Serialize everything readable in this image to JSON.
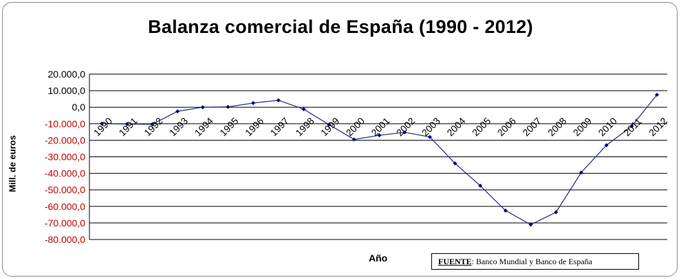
{
  "title": "Balanza comercial de España (1990 - 2012)",
  "source": {
    "label": "FUENTE",
    "text": ": Banco Mundial y Banco de España"
  },
  "chart_data": {
    "type": "line",
    "title": "Balanza comercial de España (1990 - 2012)",
    "xlabel": "Año",
    "ylabel": "Mill. de euros",
    "categories": [
      "1990",
      "1991",
      "1992",
      "1993",
      "1994",
      "1995",
      "1996",
      "1997",
      "1998",
      "1999",
      "2000",
      "2001",
      "2002",
      "2003",
      "2004",
      "2005",
      "2006",
      "2007",
      "2008",
      "2009",
      "2010",
      "2011",
      "2012"
    ],
    "series": [
      {
        "values": [
          -10000,
          -10200,
          -10300,
          -2500,
          0,
          200,
          2500,
          4200,
          -1200,
          -10500,
          -19500,
          -17000,
          -15200,
          -18000,
          -34000,
          -47500,
          -62500,
          -71000,
          -63500,
          -39500,
          -23000,
          -11500,
          7500
        ]
      }
    ],
    "ylim": [
      -80000,
      20000
    ],
    "yticks": [
      {
        "value": 20000,
        "label": "20.000,0"
      },
      {
        "value": 10000,
        "label": "10.000,0"
      },
      {
        "value": 0,
        "label": "0,0"
      },
      {
        "value": -10000,
        "label": "-10.000,0"
      },
      {
        "value": -20000,
        "label": "-20.000,0"
      },
      {
        "value": -30000,
        "label": "-30.000,0"
      },
      {
        "value": -40000,
        "label": "-40.000,0"
      },
      {
        "value": -50000,
        "label": "-50.000,0"
      },
      {
        "value": -60000,
        "label": "-60.000,0"
      },
      {
        "value": -70000,
        "label": "-70.000,0"
      },
      {
        "value": -80000,
        "label": "-80.000,0"
      }
    ],
    "grid": true,
    "colors": {
      "line": "#1f2a7a",
      "marker": "#00007a",
      "negative_tick": "#c00000",
      "positive_tick": "#000000"
    }
  }
}
